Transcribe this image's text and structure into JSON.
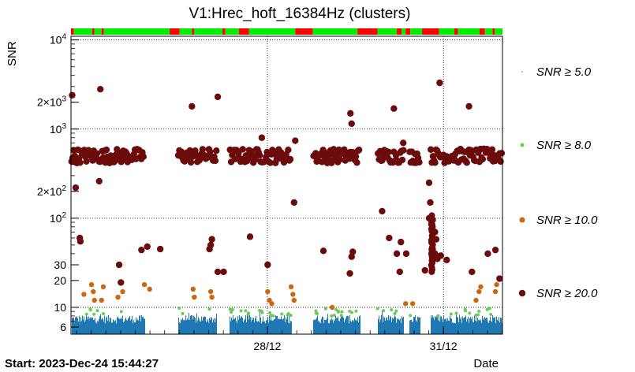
{
  "chart_data": {
    "type": "scatter",
    "title": "V1:Hrec_hoft_16384Hz (clusters)",
    "ylabel": "SNR",
    "xlabel": "Date",
    "start_label": "Start: 2023-Dec-24 15:44:27",
    "y_scale": "log",
    "ylim": [
      5,
      11000
    ],
    "xlim_days": [
      0,
      7.35
    ],
    "grid": true,
    "legend_position": "right",
    "y_ticks": [
      {
        "value": 6,
        "label": "6"
      },
      {
        "value": 10,
        "label": "10"
      },
      {
        "value": 20,
        "label": "20"
      },
      {
        "value": 30,
        "label": "30"
      },
      {
        "value": 100,
        "label": "10²",
        "base": "10",
        "exp": "2"
      },
      {
        "value": 200,
        "label": "2×10²",
        "base": "2×10",
        "exp": "2"
      },
      {
        "value": 1000,
        "label": "10³",
        "base": "10",
        "exp": "3"
      },
      {
        "value": 2000,
        "label": "2×10³",
        "base": "2×10",
        "exp": "3"
      },
      {
        "value": 10000,
        "label": "10⁴",
        "base": "10",
        "exp": "4"
      }
    ],
    "x_ticks": [
      {
        "day": 3.345,
        "label": "28/12"
      },
      {
        "day": 6.345,
        "label": "31/12"
      }
    ],
    "series": [
      {
        "name": "SNR ≥ 5.0",
        "color": "#1f77b4",
        "legend_color": "#4a6fa5"
      },
      {
        "name": "SNR ≥ 8.0",
        "color": "#66cc55"
      },
      {
        "name": "SNR ≥ 10.0",
        "color": "#cc6611"
      },
      {
        "name": "SNR ≥ 20.0",
        "color": "#6b0b0b"
      }
    ],
    "data_gaps_days": [
      [
        1.25,
        1.82
      ],
      [
        2.48,
        2.7
      ],
      [
        3.75,
        4.12
      ],
      [
        4.92,
        5.22
      ],
      [
        5.67,
        5.76
      ],
      [
        5.94,
        6.12
      ]
    ],
    "segment_bar": [
      {
        "from": 0,
        "to": 0.05,
        "state": "red"
      },
      {
        "from": 0.05,
        "to": 0.36,
        "state": "green"
      },
      {
        "from": 0.36,
        "to": 0.4,
        "state": "red"
      },
      {
        "from": 0.4,
        "to": 0.52,
        "state": "green"
      },
      {
        "from": 0.52,
        "to": 0.56,
        "state": "red"
      },
      {
        "from": 0.56,
        "to": 1.68,
        "state": "green"
      },
      {
        "from": 1.68,
        "to": 1.85,
        "state": "red"
      },
      {
        "from": 1.85,
        "to": 2.06,
        "state": "green"
      },
      {
        "from": 2.06,
        "to": 2.1,
        "state": "red"
      },
      {
        "from": 2.1,
        "to": 2.58,
        "state": "green"
      },
      {
        "from": 2.58,
        "to": 2.63,
        "state": "red"
      },
      {
        "from": 2.63,
        "to": 2.86,
        "state": "green"
      },
      {
        "from": 2.86,
        "to": 3.03,
        "state": "red"
      },
      {
        "from": 3.03,
        "to": 3.82,
        "state": "green"
      },
      {
        "from": 3.82,
        "to": 4.12,
        "state": "red"
      },
      {
        "from": 4.12,
        "to": 4.88,
        "state": "green"
      },
      {
        "from": 4.88,
        "to": 5.22,
        "state": "red"
      },
      {
        "from": 5.22,
        "to": 5.55,
        "state": "green"
      },
      {
        "from": 5.55,
        "to": 5.63,
        "state": "red"
      },
      {
        "from": 5.63,
        "to": 5.7,
        "state": "green"
      },
      {
        "from": 5.7,
        "to": 5.78,
        "state": "red"
      },
      {
        "from": 5.78,
        "to": 5.98,
        "state": "green"
      },
      {
        "from": 5.98,
        "to": 6.27,
        "state": "red"
      },
      {
        "from": 6.27,
        "to": 6.53,
        "state": "green"
      },
      {
        "from": 6.53,
        "to": 6.59,
        "state": "red"
      },
      {
        "from": 6.59,
        "to": 6.96,
        "state": "green"
      },
      {
        "from": 6.96,
        "to": 7.05,
        "state": "red"
      },
      {
        "from": 7.05,
        "to": 7.18,
        "state": "green"
      },
      {
        "from": 7.18,
        "to": 7.22,
        "state": "red"
      },
      {
        "from": 7.22,
        "to": 7.35,
        "state": "green"
      }
    ],
    "snr20_band": {
      "median": 500,
      "description": "dense band of points around SNR ~500 across all observed days"
    },
    "points_snr20": [
      [
        0.02,
        2400
      ],
      [
        0.08,
        220
      ],
      [
        0.15,
        60
      ],
      [
        0.16,
        55
      ],
      [
        0.5,
        2800
      ],
      [
        0.48,
        260
      ],
      [
        0.82,
        30
      ],
      [
        0.85,
        19
      ],
      [
        1.2,
        44
      ],
      [
        1.3,
        48
      ],
      [
        1.52,
        45
      ],
      [
        2.06,
        1800
      ],
      [
        2.5,
        2300
      ],
      [
        2.38,
        50
      ],
      [
        2.36,
        45
      ],
      [
        2.4,
        58
      ],
      [
        2.5,
        25
      ],
      [
        2.6,
        25
      ],
      [
        3.05,
        62
      ],
      [
        3.25,
        800
      ],
      [
        3.35,
        30
      ],
      [
        3.82,
        740
      ],
      [
        3.8,
        150
      ],
      [
        4.3,
        43
      ],
      [
        4.78,
        1150
      ],
      [
        4.76,
        1500
      ],
      [
        4.8,
        42
      ],
      [
        4.78,
        37
      ],
      [
        4.75,
        24
      ],
      [
        5.3,
        120
      ],
      [
        5.42,
        60
      ],
      [
        5.5,
        1700
      ],
      [
        5.62,
        54
      ],
      [
        5.55,
        40
      ],
      [
        5.66,
        700
      ],
      [
        5.71,
        40
      ],
      [
        5.6,
        25
      ],
      [
        6.03,
        26
      ],
      [
        6.1,
        250
      ],
      [
        6.12,
        150
      ],
      [
        6.1,
        100
      ],
      [
        6.15,
        85
      ],
      [
        6.2,
        70
      ],
      [
        6.22,
        58
      ],
      [
        6.28,
        3300
      ],
      [
        6.16,
        45
      ],
      [
        6.2,
        40
      ],
      [
        6.24,
        35
      ],
      [
        6.3,
        38
      ],
      [
        6.4,
        34
      ],
      [
        6.78,
        1800
      ],
      [
        6.83,
        25
      ],
      [
        7.1,
        40
      ],
      [
        7.23,
        44
      ],
      [
        7.3,
        21
      ]
    ],
    "points_snr10": [
      [
        0.22,
        14
      ],
      [
        0.35,
        18
      ],
      [
        0.38,
        15
      ],
      [
        0.4,
        12
      ],
      [
        0.52,
        12
      ],
      [
        0.55,
        17
      ],
      [
        0.8,
        13
      ],
      [
        0.88,
        15
      ],
      [
        1.25,
        18
      ],
      [
        1.34,
        16
      ],
      [
        2.08,
        16
      ],
      [
        2.1,
        13
      ],
      [
        2.38,
        15
      ],
      [
        2.4,
        13
      ],
      [
        3.35,
        15
      ],
      [
        3.38,
        12
      ],
      [
        3.42,
        11
      ],
      [
        3.75,
        17
      ],
      [
        3.78,
        14
      ],
      [
        3.8,
        12
      ],
      [
        4.45,
        10
      ],
      [
        5.7,
        11
      ],
      [
        5.82,
        11
      ],
      [
        6.9,
        12
      ],
      [
        6.95,
        15
      ],
      [
        6.98,
        17
      ],
      [
        7.23,
        15
      ],
      [
        7.25,
        18
      ]
    ],
    "snr8_color_note": "scattered green points between SNR 8 and 10",
    "snr5_band": "dense blue noise band between SNR 5 and ~9"
  }
}
